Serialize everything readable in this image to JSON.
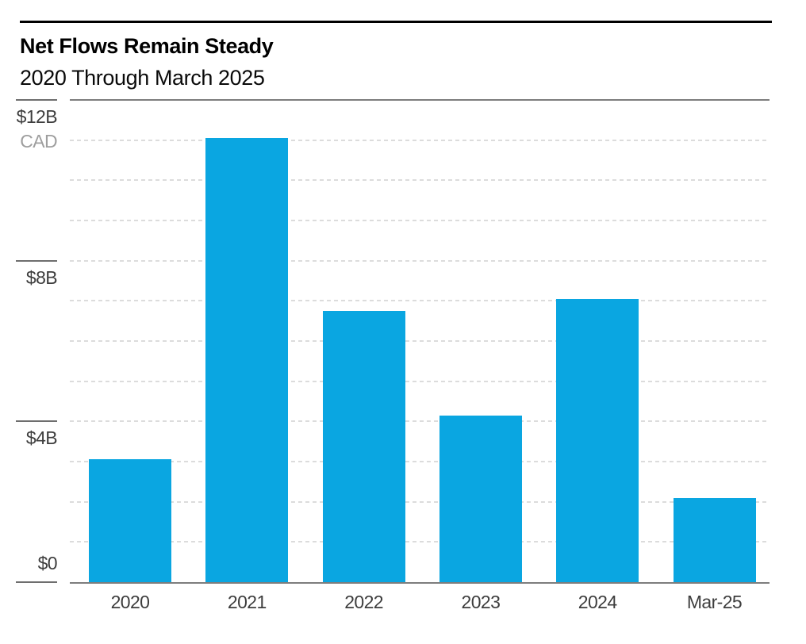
{
  "header": {
    "title": "Net Flows Remain Steady",
    "subtitle": "2020 Through March 2025"
  },
  "chart_data": {
    "type": "bar",
    "title": "Net Flows Remain Steady",
    "subtitle": "2020 Through March 2025",
    "categories": [
      "2020",
      "2021",
      "2022",
      "2023",
      "2024",
      "Mar-25"
    ],
    "values": [
      3.05,
      11.05,
      6.75,
      4.15,
      7.05,
      2.1
    ],
    "unit_label": "CAD",
    "value_unit": "billions CAD",
    "xlabel": "",
    "ylabel": "",
    "ylim": [
      0,
      12
    ],
    "gridline_interval": 1,
    "grid": true,
    "legend_position": "none",
    "y_ticks": [
      {
        "value": 12,
        "label": "$12B"
      },
      {
        "value": 8,
        "label": "$8B"
      },
      {
        "value": 4,
        "label": "$4B"
      },
      {
        "value": 0,
        "label": "$0"
      }
    ]
  },
  "colors": {
    "bar": "#0aa6e1",
    "axis_line": "#7d7d7d",
    "tick_line": "#6e6e6e",
    "gridline": "#dcdcdc",
    "label_dark": "#3d3d3d",
    "label_muted": "#9e9e9e",
    "title_rule": "#000000",
    "background": "#ffffff"
  }
}
